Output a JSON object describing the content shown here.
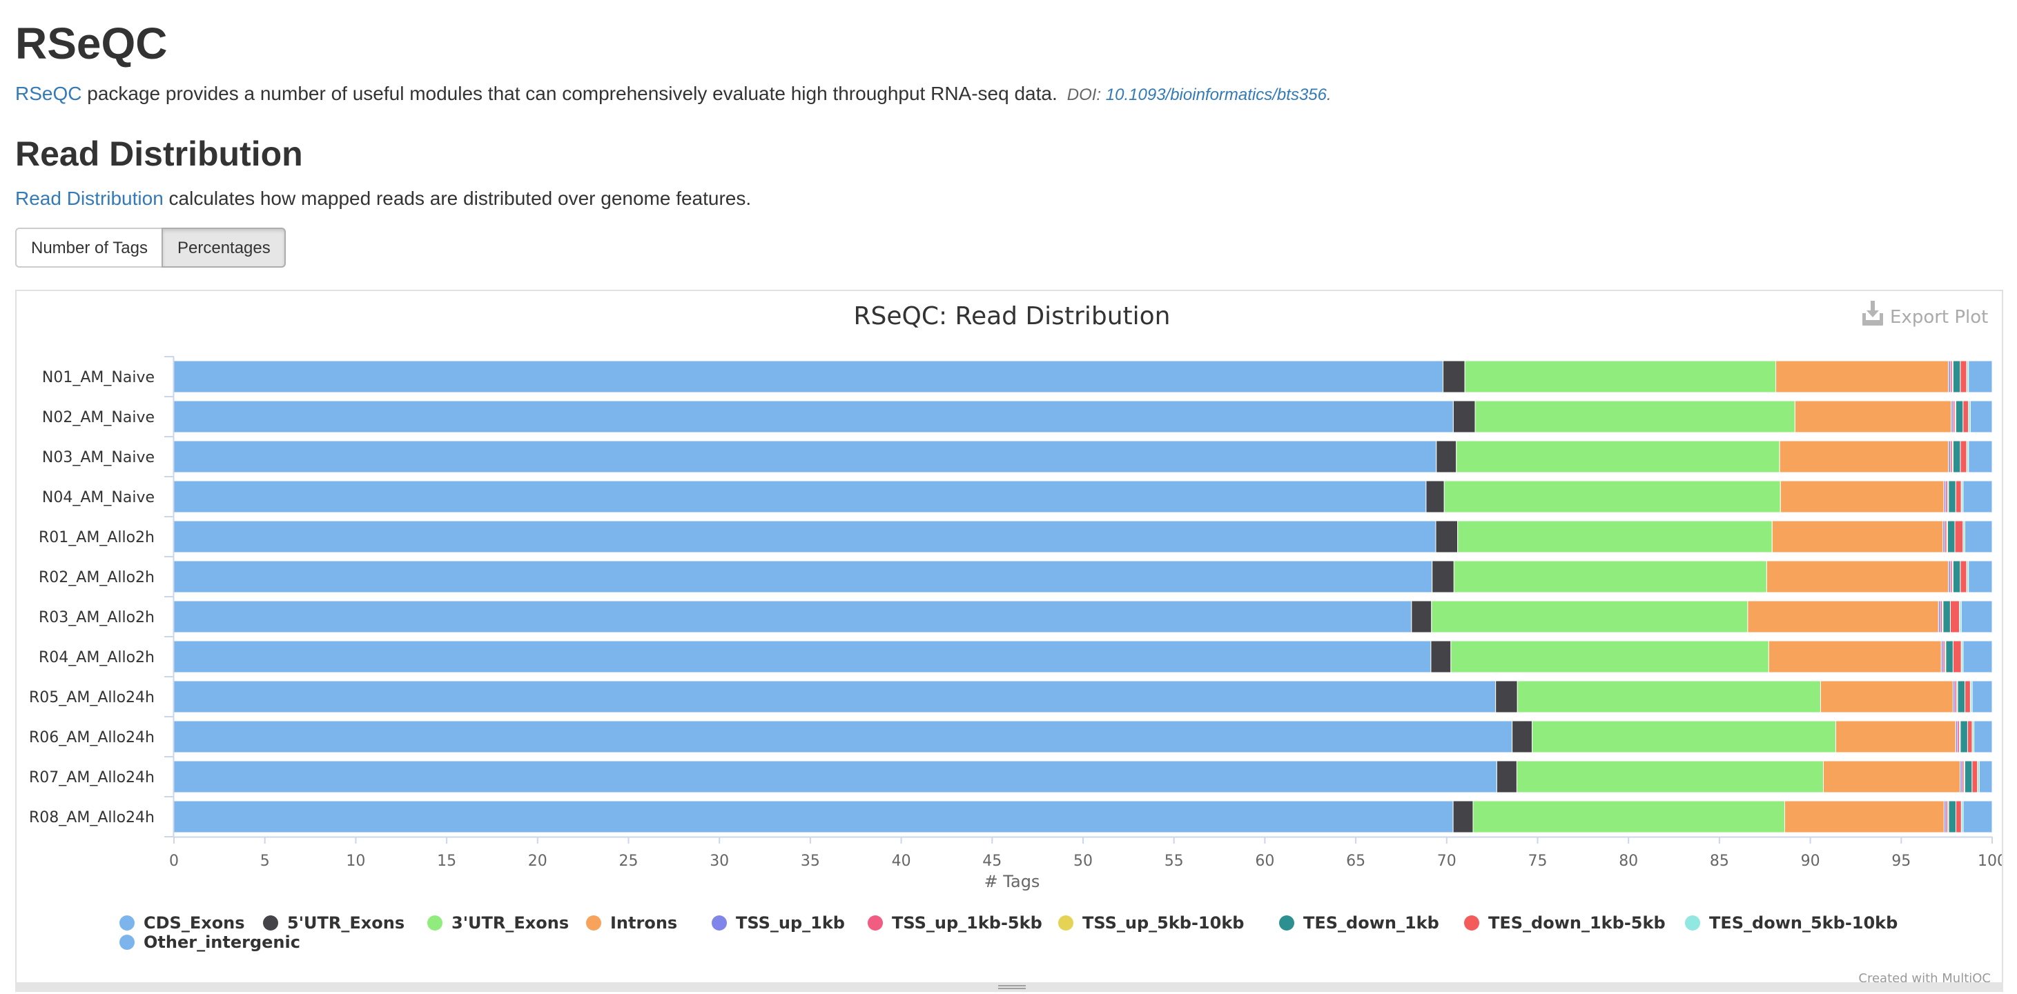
{
  "header": {
    "title": "RSeQC",
    "intro_link": "RSeQC",
    "intro_text": " package provides a number of useful modules that can comprehensively evaluate high throughput RNA-seq data.",
    "doi_label": "DOI: ",
    "doi_link": "10.1093/bioinformatics/bts356",
    "doi_suffix": "."
  },
  "section": {
    "title": "Read Distribution",
    "desc_link": "Read Distribution",
    "desc_text": " calculates how mapped reads are distributed over genome features."
  },
  "toggle": {
    "number_of_tags": "Number of Tags",
    "percentages": "Percentages",
    "active": "percentages"
  },
  "plot": {
    "export_label": "Export Plot",
    "credit": "Created with MultiQC"
  },
  "chart_data": {
    "type": "bar",
    "orientation": "horizontal",
    "stacked": "percent",
    "title": "RSeQC: Read Distribution",
    "xlabel": "# Tags",
    "ylabel": "",
    "xlim": [
      0,
      100
    ],
    "xticks": [
      0,
      5,
      10,
      15,
      20,
      25,
      30,
      35,
      40,
      45,
      50,
      55,
      60,
      65,
      70,
      75,
      80,
      85,
      90,
      95,
      100
    ],
    "grid": false,
    "legend_position": "bottom-left",
    "categories": [
      "N01_AM_Naive",
      "N02_AM_Naive",
      "N03_AM_Naive",
      "N04_AM_Naive",
      "R01_AM_Allo2h",
      "R02_AM_Allo2h",
      "R03_AM_Allo2h",
      "R04_AM_Allo2h",
      "R05_AM_Allo24h",
      "R06_AM_Allo24h",
      "R07_AM_Allo24h",
      "R08_AM_Allo24h"
    ],
    "series": [
      {
        "name": "CDS_Exons",
        "color": "#7cb5ec",
        "values": [
          69.8,
          70.4,
          69.5,
          68.9,
          69.4,
          69.2,
          68.1,
          69.2,
          72.8,
          73.6,
          72.5,
          70.6
        ]
      },
      {
        "name": "5'UTR_Exons",
        "color": "#434348",
        "values": [
          1.2,
          1.2,
          1.1,
          1.0,
          1.2,
          1.2,
          1.1,
          1.1,
          1.2,
          1.1,
          1.1,
          1.1
        ]
      },
      {
        "name": "3'UTR_Exons",
        "color": "#90ed7d",
        "values": [
          17.1,
          17.6,
          17.8,
          18.5,
          17.3,
          17.2,
          17.4,
          17.5,
          16.7,
          16.7,
          16.8,
          17.2
        ]
      },
      {
        "name": "Introns",
        "color": "#f7a35c",
        "values": [
          9.5,
          8.6,
          9.3,
          9.0,
          9.4,
          10.0,
          10.5,
          9.5,
          7.3,
          6.6,
          7.5,
          8.8
        ]
      },
      {
        "name": "TSS_up_1kb",
        "color": "#8085e9",
        "values": [
          0.1,
          0.1,
          0.1,
          0.1,
          0.1,
          0.1,
          0.1,
          0.1,
          0.1,
          0.1,
          0.1,
          0.1
        ]
      },
      {
        "name": "TSS_up_1kb-5kb",
        "color": "#f15c80",
        "values": [
          0.1,
          0.1,
          0.1,
          0.1,
          0.1,
          0.1,
          0.1,
          0.1,
          0.1,
          0.1,
          0.1,
          0.1
        ]
      },
      {
        "name": "TSS_up_5kb-10kb",
        "color": "#e4d354",
        "values": [
          0.05,
          0.05,
          0.05,
          0.05,
          0.05,
          0.05,
          0.05,
          0.05,
          0.05,
          0.05,
          0.05,
          0.05
        ]
      },
      {
        "name": "TES_down_1kb",
        "color": "#2b908f",
        "values": [
          0.4,
          0.4,
          0.4,
          0.4,
          0.4,
          0.4,
          0.4,
          0.4,
          0.4,
          0.4,
          0.4,
          0.4
        ]
      },
      {
        "name": "TES_down_1kb-5kb",
        "color": "#f45b5b",
        "values": [
          0.35,
          0.3,
          0.35,
          0.3,
          0.45,
          0.35,
          0.5,
          0.45,
          0.3,
          0.25,
          0.3,
          0.3
        ]
      },
      {
        "name": "TES_down_5kb-10kb",
        "color": "#91e8e1",
        "values": [
          0.1,
          0.1,
          0.1,
          0.1,
          0.1,
          0.1,
          0.1,
          0.1,
          0.1,
          0.1,
          0.1,
          0.1
        ]
      },
      {
        "name": "Other_intergenic",
        "color": "#7cb5ec",
        "values": [
          1.3,
          1.2,
          1.3,
          1.6,
          1.5,
          1.3,
          1.7,
          1.6,
          1.1,
          1.0,
          0.7,
          1.6
        ]
      }
    ]
  }
}
